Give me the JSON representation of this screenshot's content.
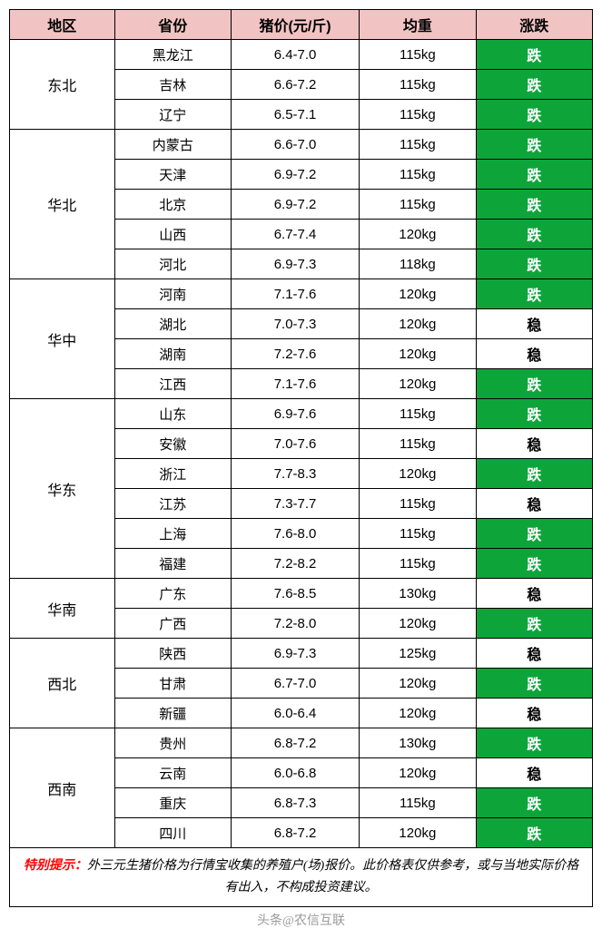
{
  "headers": {
    "region": "地区",
    "province": "省份",
    "price": "猪价(元/斤)",
    "weight": "均重",
    "trend": "涨跌"
  },
  "trend_labels": {
    "fall": "跌",
    "stable": "稳"
  },
  "colors": {
    "header_bg": "#f2c3c3",
    "fall_bg": "#0da53a",
    "fall_text": "#ffffff",
    "stable_bg": "#ffffff",
    "border": "#000000",
    "note_label": "#ff0000"
  },
  "regions": [
    {
      "name": "东北",
      "rows": [
        {
          "province": "黑龙江",
          "price": "6.4-7.0",
          "weight": "115kg",
          "trend": "fall"
        },
        {
          "province": "吉林",
          "price": "6.6-7.2",
          "weight": "115kg",
          "trend": "fall"
        },
        {
          "province": "辽宁",
          "price": "6.5-7.1",
          "weight": "115kg",
          "trend": "fall"
        }
      ]
    },
    {
      "name": "华北",
      "rows": [
        {
          "province": "内蒙古",
          "price": "6.6-7.0",
          "weight": "115kg",
          "trend": "fall"
        },
        {
          "province": "天津",
          "price": "6.9-7.2",
          "weight": "115kg",
          "trend": "fall"
        },
        {
          "province": "北京",
          "price": "6.9-7.2",
          "weight": "115kg",
          "trend": "fall"
        },
        {
          "province": "山西",
          "price": "6.7-7.4",
          "weight": "120kg",
          "trend": "fall"
        },
        {
          "province": "河北",
          "price": "6.9-7.3",
          "weight": "118kg",
          "trend": "fall"
        }
      ]
    },
    {
      "name": "华中",
      "rows": [
        {
          "province": "河南",
          "price": "7.1-7.6",
          "weight": "120kg",
          "trend": "fall"
        },
        {
          "province": "湖北",
          "price": "7.0-7.3",
          "weight": "120kg",
          "trend": "stable"
        },
        {
          "province": "湖南",
          "price": "7.2-7.6",
          "weight": "120kg",
          "trend": "stable"
        },
        {
          "province": "江西",
          "price": "7.1-7.6",
          "weight": "120kg",
          "trend": "fall"
        }
      ]
    },
    {
      "name": "华东",
      "rows": [
        {
          "province": "山东",
          "price": "6.9-7.6",
          "weight": "115kg",
          "trend": "fall"
        },
        {
          "province": "安徽",
          "price": "7.0-7.6",
          "weight": "115kg",
          "trend": "stable"
        },
        {
          "province": "浙江",
          "price": "7.7-8.3",
          "weight": "120kg",
          "trend": "fall"
        },
        {
          "province": "江苏",
          "price": "7.3-7.7",
          "weight": "115kg",
          "trend": "stable"
        },
        {
          "province": "上海",
          "price": "7.6-8.0",
          "weight": "115kg",
          "trend": "fall"
        },
        {
          "province": "福建",
          "price": "7.2-8.2",
          "weight": "115kg",
          "trend": "fall"
        }
      ]
    },
    {
      "name": "华南",
      "rows": [
        {
          "province": "广东",
          "price": "7.6-8.5",
          "weight": "130kg",
          "trend": "stable"
        },
        {
          "province": "广西",
          "price": "7.2-8.0",
          "weight": "120kg",
          "trend": "fall"
        }
      ]
    },
    {
      "name": "西北",
      "rows": [
        {
          "province": "陕西",
          "price": "6.9-7.3",
          "weight": "125kg",
          "trend": "stable"
        },
        {
          "province": "甘肃",
          "price": "6.7-7.0",
          "weight": "120kg",
          "trend": "fall"
        },
        {
          "province": "新疆",
          "price": "6.0-6.4",
          "weight": "120kg",
          "trend": "stable"
        }
      ]
    },
    {
      "name": "西南",
      "rows": [
        {
          "province": "贵州",
          "price": "6.8-7.2",
          "weight": "130kg",
          "trend": "fall"
        },
        {
          "province": "云南",
          "price": "6.0-6.8",
          "weight": "120kg",
          "trend": "stable"
        },
        {
          "province": "重庆",
          "price": "6.8-7.3",
          "weight": "115kg",
          "trend": "fall"
        },
        {
          "province": "四川",
          "price": "6.8-7.2",
          "weight": "120kg",
          "trend": "fall"
        }
      ]
    }
  ],
  "note": {
    "label": "特别提示：",
    "text": "外三元生猪价格为行情宝收集的养殖户(场)报价。此价格表仅供参考，或与当地实际价格有出入，不构成投资建议。"
  },
  "watermark": "头条@农信互联"
}
